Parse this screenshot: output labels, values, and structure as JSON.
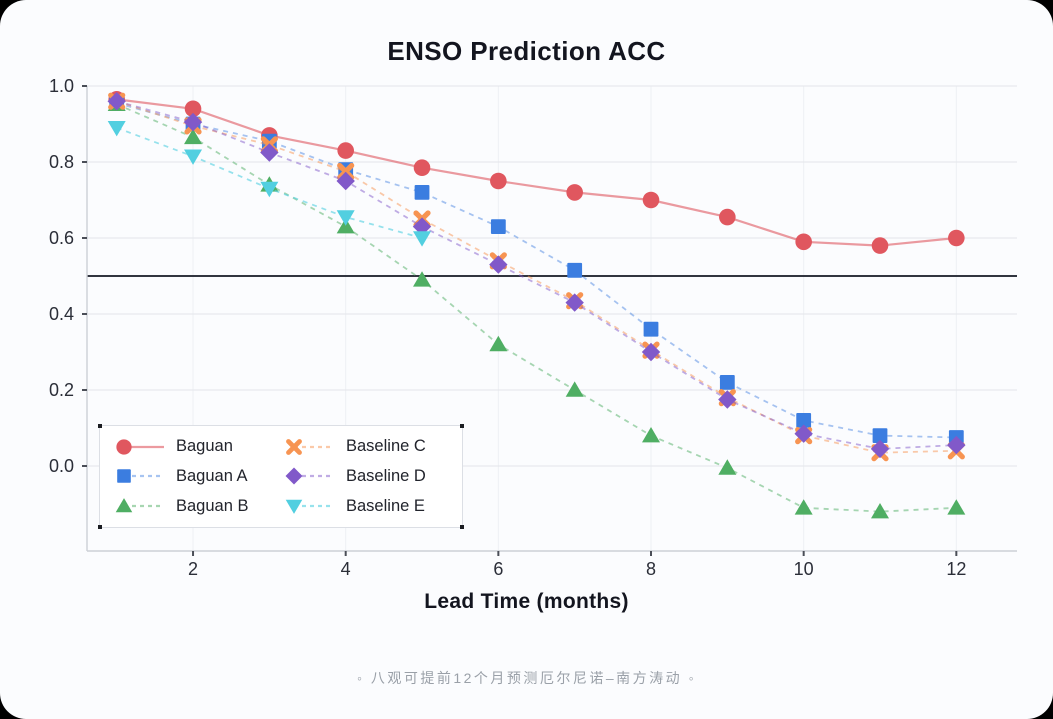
{
  "page": {
    "surround_color": "#000000",
    "card_color": "#fbfcfe"
  },
  "title": "ENSO Prediction ACC",
  "x_axis_label": "Lead Time (months)",
  "caption": "◦ 八观可提前12个月预测厄尔尼诺–南方涛动 ◦",
  "colors": {
    "grid_h": "#e3e5ea",
    "grid_v": "#eef0f4",
    "axis": "#ccd0d6",
    "tick": "#4a4e57",
    "tick_label": "#2b2e38",
    "reference_line": "#31353f",
    "legend_border": "#dcdfe5"
  },
  "chart_data": {
    "type": "line",
    "title": "ENSO Prediction ACC",
    "xlabel": "Lead Time (months)",
    "ylabel": "",
    "x": [
      1,
      2,
      3,
      4,
      5,
      6,
      7,
      8,
      9,
      10,
      11,
      12
    ],
    "x_ticks": [
      {
        "label": "2",
        "value": 2
      },
      {
        "label": "4",
        "value": 4
      },
      {
        "label": "6",
        "value": 6
      },
      {
        "label": "8",
        "value": 8
      },
      {
        "label": "10",
        "value": 10
      },
      {
        "label": "12",
        "value": 12
      }
    ],
    "y_ticks": [
      {
        "label": "1.0",
        "value": 1.0
      },
      {
        "label": "0.8",
        "value": 0.8
      },
      {
        "label": "0.6",
        "value": 0.6
      },
      {
        "label": "0.4",
        "value": 0.4
      },
      {
        "label": "0.2",
        "value": 0.2
      },
      {
        "label": "0.0",
        "value": 0.0
      }
    ],
    "ylim": [
      -0.22,
      1.06
    ],
    "xlim": [
      0.6,
      12.8
    ],
    "grid": true,
    "reference_line_y": 0.5,
    "legend_position": "inside-bottom-left",
    "series": [
      {
        "name": "Baguan",
        "marker": "circle",
        "line_style": "solid",
        "color": "#e0575f",
        "line_color": "rgba(224,87,95,0.6)",
        "values": [
          0.965,
          0.94,
          0.87,
          0.83,
          0.785,
          0.75,
          0.72,
          0.7,
          0.655,
          0.59,
          0.58,
          0.6
        ]
      },
      {
        "name": "Baguan A",
        "marker": "square",
        "line_style": "dashed",
        "color": "#3b7de0",
        "line_color": "rgba(59,125,224,0.45)",
        "values": [
          0.955,
          0.9,
          0.855,
          0.78,
          0.72,
          0.63,
          0.515,
          0.36,
          0.22,
          0.12,
          0.08,
          0.075
        ]
      },
      {
        "name": "Baguan B",
        "marker": "triangle-up",
        "line_style": "dashed",
        "color": "#4fae63",
        "line_color": "rgba(79,174,99,0.5)",
        "values": [
          0.952,
          0.865,
          0.74,
          0.63,
          0.49,
          0.32,
          0.2,
          0.08,
          -0.005,
          -0.11,
          -0.12,
          -0.11
        ]
      },
      {
        "name": "Baseline C",
        "marker": "x",
        "line_style": "dashed",
        "color": "#f79452",
        "line_color": "rgba(247,148,82,0.5)",
        "values": [
          0.96,
          0.895,
          0.845,
          0.775,
          0.65,
          0.54,
          0.435,
          0.305,
          0.18,
          0.08,
          0.035,
          0.04
        ]
      },
      {
        "name": "Baseline D",
        "marker": "diamond",
        "line_style": "dashed",
        "color": "#8159c9",
        "line_color": "rgba(129,89,201,0.5)",
        "values": [
          0.96,
          0.905,
          0.825,
          0.75,
          0.63,
          0.53,
          0.43,
          0.3,
          0.175,
          0.085,
          0.045,
          0.055
        ]
      },
      {
        "name": "Baseline E",
        "marker": "triangle-down",
        "line_style": "dashed",
        "color": "#52cfe0",
        "line_color": "rgba(82,207,224,0.6)",
        "values": [
          0.89,
          0.815,
          0.73,
          0.655,
          0.6,
          null,
          null,
          null,
          null,
          null,
          null,
          null
        ]
      }
    ]
  }
}
